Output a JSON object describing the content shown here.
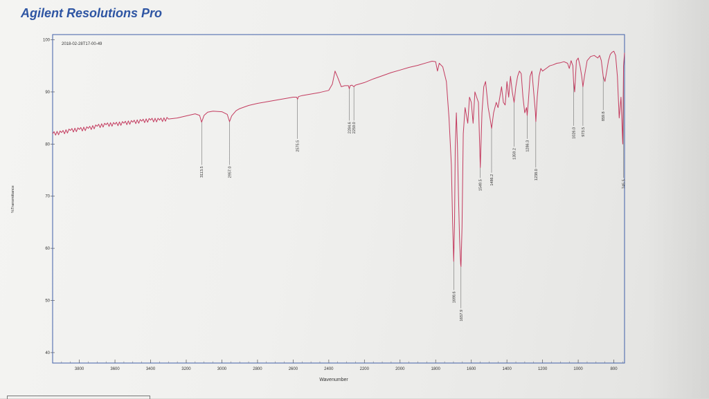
{
  "app": {
    "title": "Agilent Resolutions Pro"
  },
  "chart_data": {
    "type": "line",
    "title": "2018-02-28T17-00-49",
    "xlabel": "Wavenumber",
    "ylabel": "%Transmittance",
    "xlim": [
      3950,
      740
    ],
    "ylim": [
      38,
      101
    ],
    "x_reversed": true,
    "xticks": [
      3800,
      3600,
      3400,
      3200,
      3000,
      2800,
      2600,
      2400,
      2200,
      2000,
      1800,
      1600,
      1400,
      1200,
      1000,
      800
    ],
    "yticks": [
      40,
      50,
      60,
      70,
      80,
      90,
      100
    ],
    "line_color": "#c33a5e",
    "frame_color": "#3f5ea8",
    "series": [
      {
        "x": [
          3950,
          3900,
          3850,
          3800,
          3750,
          3700,
          3650,
          3600,
          3550,
          3500,
          3450,
          3400,
          3350,
          3300,
          3250,
          3200,
          3150,
          3125,
          3113.5,
          3100,
          3080,
          3050,
          3000,
          2970,
          2957.0,
          2945,
          2920,
          2900,
          2850,
          2800,
          2750,
          2700,
          2650,
          2600,
          2580,
          2575.5,
          2570,
          2550,
          2500,
          2450,
          2400,
          2380,
          2365,
          2350,
          2330,
          2310,
          2290,
          2284.6,
          2280,
          2270,
          2259.0,
          2250,
          2200,
          2150,
          2100,
          2050,
          2000,
          1950,
          1900,
          1850,
          1820,
          1800,
          1790,
          1780,
          1760,
          1740,
          1725,
          1712,
          1705,
          1698.6,
          1694,
          1690,
          1684,
          1678,
          1672,
          1666,
          1660,
          1657.9,
          1652,
          1645,
          1635,
          1620,
          1610,
          1600,
          1590,
          1580,
          1570,
          1560,
          1549.5,
          1540,
          1530,
          1520,
          1505,
          1495,
          1486.2,
          1475,
          1460,
          1450,
          1440,
          1430,
          1420,
          1410,
          1400,
          1390,
          1380,
          1370,
          1360,
          1359.2,
          1350,
          1340,
          1330,
          1320,
          1310,
          1300,
          1290,
          1286.3,
          1280,
          1270,
          1260,
          1250,
          1240,
          1238.0,
          1230,
          1220,
          1210,
          1200,
          1180,
          1160,
          1140,
          1120,
          1100,
          1080,
          1060,
          1050,
          1040,
          1030,
          1026.0,
          1020,
          1010,
          1000,
          990,
          980,
          973.5,
          965,
          950,
          930,
          910,
          890,
          880,
          870,
          859.8,
          850,
          840,
          830,
          820,
          810,
          800,
          790,
          780,
          770,
          760,
          750,
          745.5,
          740
        ],
        "y": [
          82.0,
          82.2,
          82.6,
          82.8,
          83.0,
          83.4,
          83.7,
          83.8,
          84.0,
          84.2,
          84.4,
          84.6,
          84.6,
          84.8,
          85.0,
          85.4,
          85.8,
          85.5,
          84.2,
          85.5,
          86.1,
          86.3,
          86.2,
          85.7,
          84.3,
          85.4,
          86.4,
          86.8,
          87.4,
          87.8,
          88.1,
          88.4,
          88.7,
          89.0,
          89.0,
          88.6,
          89.1,
          89.3,
          89.6,
          89.9,
          90.3,
          91.5,
          94.0,
          92.8,
          91.0,
          91.2,
          91.2,
          90.6,
          91.2,
          91.3,
          91.0,
          91.3,
          91.8,
          92.5,
          93.1,
          93.7,
          94.2,
          94.7,
          95.1,
          95.6,
          95.9,
          95.8,
          94.0,
          95.5,
          94.8,
          92.0,
          85.0,
          76.0,
          65.0,
          57.5,
          65.0,
          79.0,
          86.0,
          80.0,
          70.0,
          62.0,
          57.0,
          56.5,
          64.0,
          82.0,
          87.0,
          84.0,
          89.0,
          88.0,
          84.0,
          90.0,
          89.0,
          88.0,
          75.5,
          86.0,
          91.0,
          92.0,
          87.0,
          85.0,
          83.0,
          86.0,
          88.0,
          87.0,
          89.0,
          91.0,
          88.0,
          87.5,
          92.0,
          89.0,
          93.0,
          90.0,
          88.0,
          88.2,
          91.0,
          93.0,
          94.0,
          93.5,
          89.0,
          86.0,
          87.0,
          85.5,
          88.0,
          93.0,
          94.0,
          90.0,
          86.0,
          84.3,
          89.0,
          93.0,
          94.5,
          94.0,
          94.5,
          95.0,
          95.2,
          95.5,
          95.6,
          95.8,
          95.5,
          94.5,
          96.0,
          95.0,
          92.0,
          90.0,
          96.0,
          96.5,
          95.0,
          93.0,
          91.0,
          93.0,
          96.0,
          96.8,
          97.0,
          96.5,
          97.0,
          96.0,
          93.0,
          92.0,
          94.0,
          96.0,
          97.2,
          97.6,
          97.8,
          97.0,
          93.0,
          85.0,
          89.0,
          80.0,
          95.0,
          97.5
        ]
      }
    ],
    "peak_labels": [
      {
        "x": 3113.5,
        "label": "3113.5",
        "y_end": 76.0
      },
      {
        "x": 2957.0,
        "label": "2957.0",
        "y_end": 76.0
      },
      {
        "x": 2575.5,
        "label": "2575.5",
        "y_end": 81.0
      },
      {
        "x": 2284.6,
        "label": "2284.6",
        "y_end": 84.5
      },
      {
        "x": 2259.0,
        "label": "2259.0",
        "y_end": 84.5
      },
      {
        "x": 1698.6,
        "label": "1698.6",
        "y_end": 52.0
      },
      {
        "x": 1657.9,
        "label": "1657.9",
        "y_end": 48.5
      },
      {
        "x": 1549.5,
        "label": "1549.5",
        "y_end": 73.5
      },
      {
        "x": 1486.2,
        "label": "1486.2",
        "y_end": 74.5
      },
      {
        "x": 1359.2,
        "label": "1359.2",
        "y_end": 79.5
      },
      {
        "x": 1286.3,
        "label": "1286.3",
        "y_end": 81.0
      },
      {
        "x": 1238.0,
        "label": "1238.0",
        "y_end": 75.5
      },
      {
        "x": 1026.0,
        "label": "1026.0",
        "y_end": 83.5
      },
      {
        "x": 973.5,
        "label": "973.5",
        "y_end": 83.5
      },
      {
        "x": 859.8,
        "label": "859.8",
        "y_end": 86.5
      },
      {
        "x": 745.5,
        "label": "745.5",
        "y_end": 73.5
      }
    ]
  }
}
